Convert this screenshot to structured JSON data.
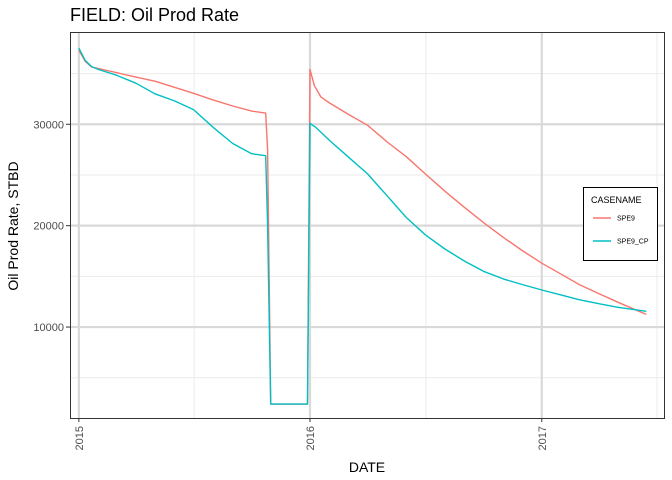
{
  "chart_data": {
    "type": "line",
    "title": "FIELD:  Oil Prod Rate",
    "xlabel": "DATE",
    "ylabel": "Oil Prod Rate, STBD",
    "x_tick_labels": [
      "2015",
      "2016",
      "2017"
    ],
    "y_tick_labels": [
      "10000",
      "20000",
      "30000"
    ],
    "y_ticks": [
      10000,
      20000,
      30000
    ],
    "xlim": [
      "2014-12-18",
      "2017-07-13"
    ],
    "ylim": [
      1030,
      39100
    ],
    "grid": true,
    "legend": {
      "title": "CASENAME",
      "placement": "right",
      "entries": [
        "SPE9",
        "SPE9_CP"
      ]
    },
    "series": [
      {
        "name": "SPE9",
        "color": "#F8766D",
        "points": [
          [
            "2015-01-01",
            37300
          ],
          [
            "2015-01-11",
            36200
          ],
          [
            "2015-01-21",
            35650
          ],
          [
            "2015-02-01",
            35500
          ],
          [
            "2015-03-01",
            35100
          ],
          [
            "2015-04-01",
            34650
          ],
          [
            "2015-05-01",
            34250
          ],
          [
            "2015-06-01",
            33650
          ],
          [
            "2015-07-01",
            33050
          ],
          [
            "2015-08-01",
            32400
          ],
          [
            "2015-09-01",
            31800
          ],
          [
            "2015-10-01",
            31300
          ],
          [
            "2015-10-23",
            31100
          ],
          [
            "2015-10-26",
            27500
          ],
          [
            "2015-10-31",
            2400
          ],
          [
            "2015-12-28",
            2400
          ],
          [
            "2016-01-01",
            35400
          ],
          [
            "2016-01-08",
            33800
          ],
          [
            "2016-01-18",
            32700
          ],
          [
            "2016-02-01",
            32100
          ],
          [
            "2016-03-01",
            31000
          ],
          [
            "2016-04-01",
            29900
          ],
          [
            "2016-05-01",
            28300
          ],
          [
            "2016-06-01",
            26800
          ],
          [
            "2016-07-01",
            25100
          ],
          [
            "2016-08-01",
            23400
          ],
          [
            "2016-09-01",
            21800
          ],
          [
            "2016-10-01",
            20300
          ],
          [
            "2016-11-01",
            18850
          ],
          [
            "2016-12-01",
            17550
          ],
          [
            "2017-01-01",
            16300
          ],
          [
            "2017-02-01",
            15200
          ],
          [
            "2017-03-01",
            14200
          ],
          [
            "2017-04-01",
            13300
          ],
          [
            "2017-05-01",
            12450
          ],
          [
            "2017-06-15",
            11250
          ]
        ]
      },
      {
        "name": "SPE9_CP",
        "color": "#00BFC4",
        "points": [
          [
            "2015-01-01",
            37500
          ],
          [
            "2015-01-11",
            36300
          ],
          [
            "2015-01-21",
            35700
          ],
          [
            "2015-02-01",
            35400
          ],
          [
            "2015-03-01",
            34850
          ],
          [
            "2015-04-01",
            34050
          ],
          [
            "2015-05-01",
            33000
          ],
          [
            "2015-06-01",
            32300
          ],
          [
            "2015-07-01",
            31450
          ],
          [
            "2015-08-01",
            29700
          ],
          [
            "2015-09-01",
            28100
          ],
          [
            "2015-10-01",
            27100
          ],
          [
            "2015-10-23",
            26900
          ],
          [
            "2015-10-26",
            20000
          ],
          [
            "2015-10-31",
            2400
          ],
          [
            "2015-12-28",
            2400
          ],
          [
            "2016-01-01",
            30100
          ],
          [
            "2016-01-10",
            29700
          ],
          [
            "2016-02-01",
            28400
          ],
          [
            "2016-03-01",
            26800
          ],
          [
            "2016-04-01",
            25100
          ],
          [
            "2016-05-01",
            23000
          ],
          [
            "2016-06-01",
            20800
          ],
          [
            "2016-07-01",
            19100
          ],
          [
            "2016-08-01",
            17700
          ],
          [
            "2016-09-01",
            16500
          ],
          [
            "2016-10-01",
            15500
          ],
          [
            "2016-11-01",
            14750
          ],
          [
            "2016-12-01",
            14200
          ],
          [
            "2017-01-01",
            13650
          ],
          [
            "2017-02-01",
            13150
          ],
          [
            "2017-03-01",
            12700
          ],
          [
            "2017-04-01",
            12300
          ],
          [
            "2017-05-01",
            11950
          ],
          [
            "2017-06-15",
            11550
          ]
        ]
      }
    ]
  }
}
